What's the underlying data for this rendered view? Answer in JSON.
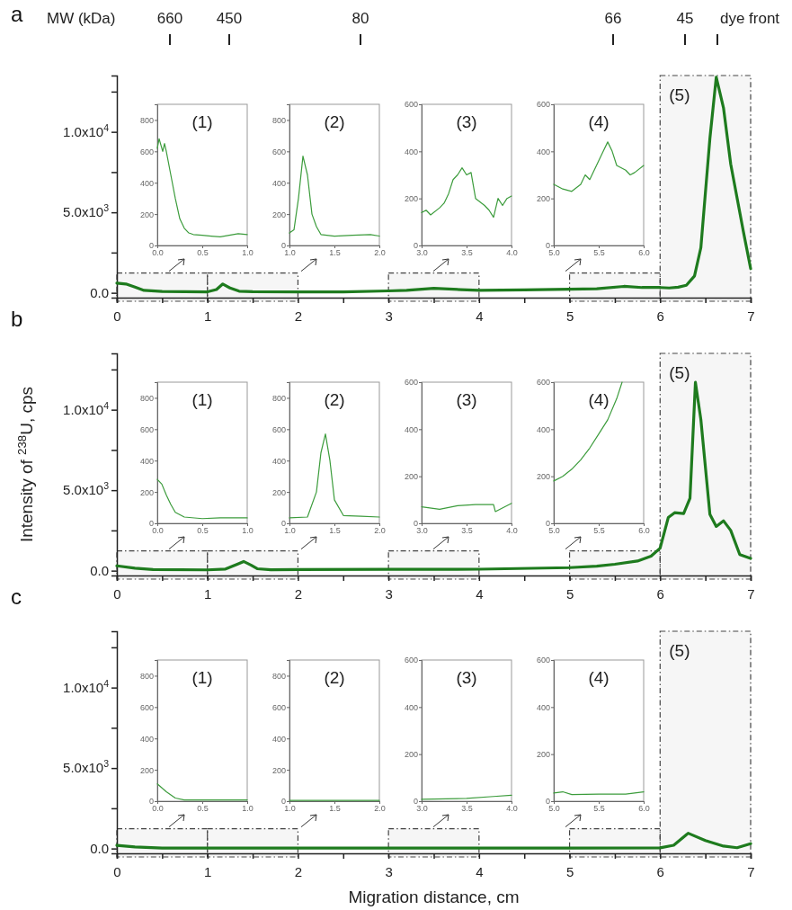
{
  "chart_data": [
    {
      "type": "line",
      "title": "a",
      "xlim": [
        0,
        7
      ],
      "xticks": [
        0,
        {
          "value": 0.5,
          "label": null
        },
        1,
        {
          "value": 1.5,
          "label": null
        },
        2,
        {
          "value": 2.5,
          "label": null
        },
        3,
        {
          "value": 3.5,
          "label": null
        },
        4,
        {
          "value": 4.5,
          "label": null
        },
        5,
        {
          "value": 5.5,
          "label": null
        },
        6,
        {
          "value": 6.5,
          "label": null
        },
        7
      ],
      "ylim": [
        -300,
        13500
      ],
      "yticks": [
        {
          "value": 0,
          "label": "0.0"
        },
        {
          "value": 2500,
          "label": null
        },
        {
          "value": 5000,
          "label": "5.0x10$^{3}$"
        },
        {
          "value": 7500,
          "label": null
        },
        {
          "value": 10000,
          "label": "1.0x10$^{4}$"
        },
        {
          "value": 12500,
          "label": null
        }
      ],
      "annotations": [
        "MW (kDa)",
        "660",
        "450",
        "80",
        "66",
        "45",
        "dye front"
      ],
      "bands": [
        {
          "axis": "x",
          "from": 0,
          "to": 1
        },
        {
          "axis": "x",
          "from": 1,
          "to": 2
        },
        {
          "axis": "x",
          "from": 3,
          "to": 4
        },
        {
          "axis": "x",
          "from": 5,
          "to": 6
        },
        {
          "axis": "x",
          "from": 6,
          "to": 7,
          "label": "(5)"
        }
      ],
      "series": [
        {
          "color": "#1e7b1e",
          "x": [
            0,
            0.1,
            0.2,
            0.3,
            0.5,
            1.0,
            1.1,
            1.17,
            1.25,
            1.35,
            1.5,
            2,
            2.5,
            3,
            3.2,
            3.5,
            3.8,
            4,
            4.5,
            5,
            5.3,
            5.6,
            5.8,
            6,
            6.1,
            6.2,
            6.29,
            6.38,
            6.45,
            6.55,
            6.62,
            6.7,
            6.78,
            6.92,
            7.0
          ],
          "values": [
            600,
            550,
            350,
            150,
            80,
            60,
            200,
            550,
            300,
            100,
            70,
            60,
            60,
            120,
            150,
            280,
            200,
            150,
            180,
            220,
            250,
            400,
            330,
            330,
            300,
            350,
            470,
            1050,
            2800,
            9600,
            13400,
            11500,
            8000,
            3800,
            1500
          ]
        }
      ]
    },
    {
      "type": "line",
      "title": "(1)",
      "xlim": [
        0,
        1
      ],
      "xticks": [
        {
          "value": 0,
          "label": "0.0"
        },
        0.5,
        {
          "value": 1,
          "label": "1.0"
        }
      ],
      "ylim": [
        0,
        900
      ],
      "yticks": [
        0,
        200,
        400,
        600,
        800
      ],
      "series": [
        {
          "color": "#3c9c3c",
          "x": [
            0,
            0.02,
            0.04,
            0.06,
            0.08,
            0.1,
            0.15,
            0.2,
            0.25,
            0.3,
            0.35,
            0.4,
            0.5,
            0.6,
            0.7,
            0.8,
            0.9,
            1.0
          ],
          "values": [
            620,
            680,
            640,
            600,
            650,
            600,
            450,
            300,
            170,
            110,
            80,
            70,
            65,
            60,
            55,
            65,
            75,
            70
          ]
        }
      ]
    },
    {
      "type": "line",
      "title": "(2)",
      "xlim": [
        1,
        2
      ],
      "xticks": [
        {
          "value": 1,
          "label": "1.0"
        },
        1.5,
        {
          "value": 2,
          "label": "2.0"
        }
      ],
      "ylim": [
        0,
        900
      ],
      "yticks": [
        0,
        200,
        400,
        600,
        800
      ],
      "series": [
        {
          "color": "#3c9c3c",
          "x": [
            1.0,
            1.05,
            1.1,
            1.15,
            1.2,
            1.25,
            1.3,
            1.35,
            1.5,
            1.7,
            1.9,
            2.0
          ],
          "values": [
            80,
            100,
            300,
            570,
            450,
            200,
            120,
            70,
            60,
            65,
            70,
            60
          ]
        }
      ]
    },
    {
      "type": "line",
      "title": "(3)",
      "xlim": [
        3,
        4
      ],
      "xticks": [
        {
          "value": 3,
          "label": "3.0"
        },
        3.5,
        {
          "value": 4,
          "label": "4.0"
        }
      ],
      "ylim": [
        0,
        600
      ],
      "yticks": [
        0,
        200,
        400,
        600
      ],
      "series": [
        {
          "color": "#3c9c3c",
          "x": [
            3.0,
            3.05,
            3.1,
            3.2,
            3.25,
            3.3,
            3.35,
            3.4,
            3.45,
            3.5,
            3.55,
            3.6,
            3.7,
            3.75,
            3.8,
            3.85,
            3.9,
            3.95,
            4.0
          ],
          "values": [
            140,
            150,
            130,
            160,
            180,
            220,
            280,
            300,
            330,
            300,
            310,
            200,
            170,
            150,
            120,
            200,
            170,
            200,
            210
          ]
        }
      ]
    },
    {
      "type": "line",
      "title": "(4)",
      "xlim": [
        5,
        6
      ],
      "xticks": [
        {
          "value": 5,
          "label": "5.0"
        },
        5.5,
        {
          "value": 6,
          "label": "6.0"
        }
      ],
      "ylim": [
        0,
        600
      ],
      "yticks": [
        0,
        200,
        400,
        600
      ],
      "series": [
        {
          "color": "#3c9c3c",
          "x": [
            5.0,
            5.1,
            5.2,
            5.3,
            5.35,
            5.4,
            5.5,
            5.55,
            5.6,
            5.65,
            5.7,
            5.8,
            5.85,
            5.9,
            6.0
          ],
          "values": [
            260,
            240,
            230,
            260,
            300,
            280,
            360,
            400,
            440,
            400,
            340,
            320,
            300,
            310,
            340
          ]
        }
      ]
    },
    {
      "type": "line",
      "title": "b",
      "xlim": [
        0,
        7
      ],
      "xticks": [
        0,
        {
          "value": 0.5,
          "label": null
        },
        1,
        {
          "value": 1.5,
          "label": null
        },
        2,
        {
          "value": 2.5,
          "label": null
        },
        3,
        {
          "value": 3.5,
          "label": null
        },
        4,
        {
          "value": 4.5,
          "label": null
        },
        5,
        {
          "value": 5.5,
          "label": null
        },
        6,
        {
          "value": 6.5,
          "label": null
        },
        7
      ],
      "ylim": [
        -300,
        13500
      ],
      "yticks": [
        {
          "value": 0,
          "label": "0.0"
        },
        {
          "value": 2500,
          "label": null
        },
        {
          "value": 5000,
          "label": "5.0x10$^{3}$"
        },
        {
          "value": 7500,
          "label": null
        },
        {
          "value": 10000,
          "label": "1.0x10$^{4}$"
        },
        {
          "value": 12500,
          "label": null
        }
      ],
      "ylabel": "Intensity of $^{238}$U, cps",
      "bands": [
        {
          "axis": "x",
          "from": 0,
          "to": 1
        },
        {
          "axis": "x",
          "from": 1,
          "to": 2
        },
        {
          "axis": "x",
          "from": 3,
          "to": 4
        },
        {
          "axis": "x",
          "from": 5,
          "to": 6
        },
        {
          "axis": "x",
          "from": 6,
          "to": 7,
          "label": "(5)"
        }
      ],
      "series": [
        {
          "color": "#1e7b1e",
          "x": [
            0,
            0.2,
            0.4,
            1.0,
            1.2,
            1.33,
            1.4,
            1.48,
            1.55,
            1.7,
            2,
            3,
            4,
            5,
            5.3,
            5.5,
            5.75,
            5.9,
            6.0,
            6.09,
            6.16,
            6.26,
            6.33,
            6.39,
            6.45,
            6.55,
            6.62,
            6.7,
            6.78,
            6.88,
            7.0
          ],
          "values": [
            300,
            150,
            70,
            50,
            100,
            400,
            570,
            350,
            120,
            60,
            70,
            80,
            90,
            190,
            280,
            400,
            600,
            900,
            1400,
            3300,
            3600,
            3550,
            4500,
            11700,
            9400,
            3500,
            2750,
            3100,
            2500,
            1000,
            760
          ]
        }
      ]
    },
    {
      "type": "line",
      "title": "(1)",
      "xlim": [
        0,
        1
      ],
      "xticks": [
        {
          "value": 0,
          "label": "0.0"
        },
        0.5,
        {
          "value": 1,
          "label": "1.0"
        }
      ],
      "ylim": [
        0,
        900
      ],
      "yticks": [
        0,
        200,
        400,
        600,
        800
      ],
      "series": [
        {
          "color": "#3c9c3c",
          "x": [
            0,
            0.05,
            0.1,
            0.15,
            0.2,
            0.3,
            0.5,
            0.7,
            1.0
          ],
          "values": [
            280,
            250,
            180,
            120,
            70,
            40,
            30,
            35,
            35
          ]
        }
      ]
    },
    {
      "type": "line",
      "title": "(2)",
      "xlim": [
        1,
        2
      ],
      "xticks": [
        {
          "value": 1,
          "label": "1.0"
        },
        1.5,
        {
          "value": 2,
          "label": "2.0"
        }
      ],
      "ylim": [
        0,
        900
      ],
      "yticks": [
        0,
        200,
        400,
        600,
        800
      ],
      "series": [
        {
          "color": "#3c9c3c",
          "x": [
            1.0,
            1.2,
            1.3,
            1.35,
            1.4,
            1.45,
            1.5,
            1.6,
            1.8,
            2.0
          ],
          "values": [
            35,
            40,
            200,
            450,
            570,
            400,
            150,
            50,
            45,
            40
          ]
        }
      ]
    },
    {
      "type": "line",
      "title": "(3)",
      "xlim": [
        3,
        4
      ],
      "xticks": [
        {
          "value": 3,
          "label": "3.0"
        },
        3.5,
        {
          "value": 4,
          "label": "4.0"
        }
      ],
      "ylim": [
        0,
        600
      ],
      "yticks": [
        0,
        200,
        400,
        600
      ],
      "series": [
        {
          "color": "#3c9c3c",
          "x": [
            3.0,
            3.2,
            3.4,
            3.6,
            3.8,
            3.82,
            4.0
          ],
          "values": [
            70,
            60,
            75,
            80,
            80,
            50,
            85
          ]
        }
      ]
    },
    {
      "type": "line",
      "title": "(4)",
      "xlim": [
        5,
        6
      ],
      "xticks": [
        {
          "value": 5,
          "label": "5.0"
        },
        5.5,
        {
          "value": 6,
          "label": "6.0"
        }
      ],
      "ylim": [
        0,
        600
      ],
      "yticks": [
        0,
        200,
        400,
        600
      ],
      "series": [
        {
          "color": "#3c9c3c",
          "x": [
            5.0,
            5.1,
            5.2,
            5.3,
            5.4,
            5.5,
            5.6,
            5.7,
            5.76
          ],
          "values": [
            180,
            200,
            230,
            270,
            320,
            380,
            440,
            530,
            600
          ]
        }
      ]
    },
    {
      "type": "line",
      "title": "c",
      "xlim": [
        0,
        7
      ],
      "xticks": [
        0,
        {
          "value": 0.5,
          "label": null
        },
        1,
        {
          "value": 1.5,
          "label": null
        },
        2,
        {
          "value": 2.5,
          "label": null
        },
        3,
        {
          "value": 3.5,
          "label": null
        },
        4,
        {
          "value": 4.5,
          "label": null
        },
        5,
        {
          "value": 5.5,
          "label": null
        },
        6,
        {
          "value": 6.5,
          "label": null
        },
        7
      ],
      "ylim": [
        -300,
        13500
      ],
      "yticks": [
        {
          "value": 0,
          "label": "0.0"
        },
        {
          "value": 2500,
          "label": null
        },
        {
          "value": 5000,
          "label": "5.0x10$^{3}$"
        },
        {
          "value": 7500,
          "label": null
        },
        {
          "value": 10000,
          "label": "1.0x10$^{4}$"
        },
        {
          "value": 12500,
          "label": null
        }
      ],
      "xlabel": "Migration distance, cm",
      "bands": [
        {
          "axis": "x",
          "from": 0,
          "to": 1
        },
        {
          "axis": "x",
          "from": 1,
          "to": 2
        },
        {
          "axis": "x",
          "from": 3,
          "to": 4
        },
        {
          "axis": "x",
          "from": 5,
          "to": 6
        },
        {
          "axis": "x",
          "from": 6,
          "to": 7,
          "label": "(5)"
        }
      ],
      "series": [
        {
          "color": "#1e7b1e",
          "x": [
            0,
            0.2,
            0.5,
            1,
            2,
            3,
            4,
            5,
            6.0,
            6.15,
            6.31,
            6.5,
            6.7,
            6.85,
            7.0
          ],
          "values": [
            200,
            100,
            30,
            30,
            30,
            30,
            30,
            30,
            40,
            200,
            950,
            500,
            150,
            50,
            300
          ]
        }
      ]
    },
    {
      "type": "line",
      "title": "(1)",
      "xlim": [
        0,
        1
      ],
      "xticks": [
        {
          "value": 0,
          "label": "0.0"
        },
        0.5,
        {
          "value": 1,
          "label": "1.0"
        }
      ],
      "ylim": [
        0,
        900
      ],
      "yticks": [
        0,
        200,
        400,
        600,
        800
      ],
      "series": [
        {
          "color": "#3c9c3c",
          "x": [
            0,
            0.1,
            0.2,
            0.3,
            1.0
          ],
          "values": [
            110,
            60,
            20,
            8,
            8
          ]
        }
      ]
    },
    {
      "type": "line",
      "title": "(2)",
      "xlim": [
        1,
        2
      ],
      "xticks": [
        {
          "value": 1,
          "label": "1.0"
        },
        1.5,
        {
          "value": 2,
          "label": "2.0"
        }
      ],
      "ylim": [
        0,
        900
      ],
      "yticks": [
        0,
        200,
        400,
        600,
        800
      ],
      "series": [
        {
          "color": "#3c9c3c",
          "x": [
            1.0,
            1.5,
            2.0
          ],
          "values": [
            5,
            5,
            5
          ]
        }
      ]
    },
    {
      "type": "line",
      "title": "(3)",
      "xlim": [
        3,
        4
      ],
      "xticks": [
        {
          "value": 3,
          "label": "3.0"
        },
        3.5,
        {
          "value": 4,
          "label": "4.0"
        }
      ],
      "ylim": [
        0,
        600
      ],
      "yticks": [
        0,
        200,
        400,
        600
      ],
      "series": [
        {
          "color": "#3c9c3c",
          "x": [
            3.0,
            3.5,
            3.8,
            4.0
          ],
          "values": [
            8,
            12,
            20,
            25
          ]
        }
      ]
    },
    {
      "type": "line",
      "title": "(4)",
      "xlim": [
        5,
        6
      ],
      "xticks": [
        {
          "value": 5,
          "label": "5.0"
        },
        5.5,
        {
          "value": 6,
          "label": "6.0"
        }
      ],
      "ylim": [
        0,
        600
      ],
      "yticks": [
        0,
        200,
        400,
        600
      ],
      "series": [
        {
          "color": "#3c9c3c",
          "x": [
            5.0,
            5.1,
            5.2,
            5.5,
            5.8,
            6.0
          ],
          "values": [
            35,
            40,
            28,
            30,
            30,
            40
          ]
        }
      ]
    }
  ]
}
